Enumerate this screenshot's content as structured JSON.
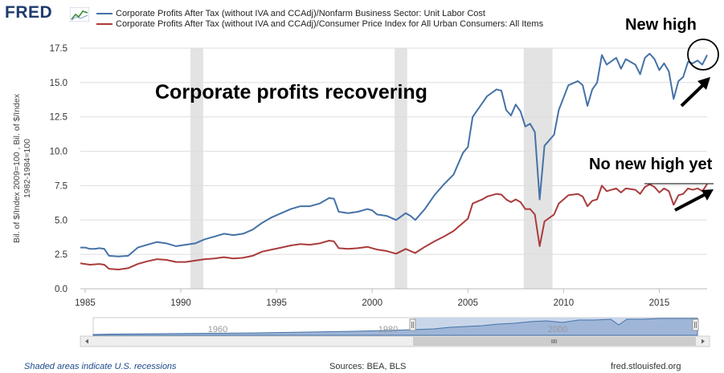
{
  "brand": {
    "logo_text": "FRED"
  },
  "colors": {
    "series1": "#4572a7",
    "series2": "#aa3b3b",
    "recession": "#e3e3e3",
    "grid": "#dddddd",
    "navigator_fill": "#9fb6d8",
    "navigator_line": "#4572a7"
  },
  "chart_data": {
    "type": "line",
    "title": "",
    "xlabel": "",
    "ylabel": "Bil. of $/Index 2009=100 , Bil. of $/Index 1982-1984=100",
    "xlim": [
      1984.75,
      2017.5
    ],
    "ylim": [
      0,
      17.5
    ],
    "yticks": [
      "0.0",
      "2.5",
      "5.0",
      "7.5",
      "10.0",
      "12.5",
      "15.0",
      "17.5"
    ],
    "xticks": [
      "1985",
      "1990",
      "1995",
      "2000",
      "2005",
      "2010",
      "2015"
    ],
    "grid": true,
    "recessions": [
      [
        1990.5,
        1991.17
      ],
      [
        2001.17,
        2001.83
      ],
      [
        2007.92,
        2009.42
      ]
    ],
    "series": [
      {
        "name": "Corporate Profits After Tax (without IVA and CCAdj)/Nonfarm Business Sector: Unit Labor Cost",
        "points": [
          [
            1984.75,
            3.0
          ],
          [
            1985.0,
            3.0
          ],
          [
            1985.25,
            2.9
          ],
          [
            1985.5,
            2.9
          ],
          [
            1985.75,
            2.95
          ],
          [
            1986.0,
            2.9
          ],
          [
            1986.25,
            2.4
          ],
          [
            1986.75,
            2.35
          ],
          [
            1987.25,
            2.4
          ],
          [
            1987.75,
            3.0
          ],
          [
            1988.25,
            3.2
          ],
          [
            1988.75,
            3.4
          ],
          [
            1989.25,
            3.3
          ],
          [
            1989.75,
            3.1
          ],
          [
            1990.25,
            3.2
          ],
          [
            1990.75,
            3.3
          ],
          [
            1991.25,
            3.6
          ],
          [
            1991.75,
            3.8
          ],
          [
            1992.25,
            4.0
          ],
          [
            1992.75,
            3.9
          ],
          [
            1993.25,
            4.0
          ],
          [
            1993.75,
            4.3
          ],
          [
            1994.25,
            4.8
          ],
          [
            1994.75,
            5.2
          ],
          [
            1995.25,
            5.5
          ],
          [
            1995.75,
            5.8
          ],
          [
            1996.25,
            6.0
          ],
          [
            1996.75,
            6.0
          ],
          [
            1997.25,
            6.2
          ],
          [
            1997.75,
            6.6
          ],
          [
            1998.0,
            6.55
          ],
          [
            1998.25,
            5.6
          ],
          [
            1998.75,
            5.5
          ],
          [
            1999.25,
            5.6
          ],
          [
            1999.75,
            5.8
          ],
          [
            2000.0,
            5.7
          ],
          [
            2000.25,
            5.4
          ],
          [
            2000.75,
            5.3
          ],
          [
            2001.25,
            5.0
          ],
          [
            2001.75,
            5.5
          ],
          [
            2002.0,
            5.3
          ],
          [
            2002.25,
            5.0
          ],
          [
            2002.75,
            5.8
          ],
          [
            2003.25,
            6.8
          ],
          [
            2003.75,
            7.6
          ],
          [
            2004.25,
            8.3
          ],
          [
            2004.75,
            9.9
          ],
          [
            2005.0,
            10.3
          ],
          [
            2005.25,
            12.5
          ],
          [
            2005.75,
            13.5
          ],
          [
            2006.0,
            14.0
          ],
          [
            2006.5,
            14.5
          ],
          [
            2006.75,
            14.4
          ],
          [
            2007.0,
            13.0
          ],
          [
            2007.25,
            12.6
          ],
          [
            2007.5,
            13.4
          ],
          [
            2007.75,
            12.9
          ],
          [
            2008.0,
            11.8
          ],
          [
            2008.25,
            12.0
          ],
          [
            2008.5,
            11.4
          ],
          [
            2008.75,
            6.5
          ],
          [
            2009.0,
            10.4
          ],
          [
            2009.5,
            11.2
          ],
          [
            2009.75,
            13.0
          ],
          [
            2010.25,
            14.8
          ],
          [
            2010.75,
            15.1
          ],
          [
            2011.0,
            14.8
          ],
          [
            2011.25,
            13.3
          ],
          [
            2011.5,
            14.5
          ],
          [
            2011.75,
            15.0
          ],
          [
            2012.0,
            17.0
          ],
          [
            2012.25,
            16.3
          ],
          [
            2012.75,
            16.8
          ],
          [
            2013.0,
            16.0
          ],
          [
            2013.25,
            16.7
          ],
          [
            2013.75,
            16.3
          ],
          [
            2014.0,
            15.6
          ],
          [
            2014.25,
            16.8
          ],
          [
            2014.5,
            17.1
          ],
          [
            2014.75,
            16.7
          ],
          [
            2015.0,
            15.9
          ],
          [
            2015.25,
            16.4
          ],
          [
            2015.5,
            15.8
          ],
          [
            2015.75,
            13.8
          ],
          [
            2016.0,
            15.1
          ],
          [
            2016.25,
            15.4
          ],
          [
            2016.5,
            16.5
          ],
          [
            2016.75,
            16.4
          ],
          [
            2017.0,
            16.6
          ],
          [
            2017.25,
            16.3
          ],
          [
            2017.5,
            17.0
          ]
        ]
      },
      {
        "name": "Corporate Profits After Tax (without IVA and CCAdj)/Consumer Price Index for All Urban Consumers: All Items",
        "points": [
          [
            1984.75,
            1.85
          ],
          [
            1985.25,
            1.75
          ],
          [
            1985.75,
            1.8
          ],
          [
            1986.0,
            1.75
          ],
          [
            1986.25,
            1.45
          ],
          [
            1986.75,
            1.4
          ],
          [
            1987.25,
            1.5
          ],
          [
            1987.75,
            1.8
          ],
          [
            1988.25,
            2.0
          ],
          [
            1988.75,
            2.15
          ],
          [
            1989.25,
            2.1
          ],
          [
            1989.75,
            1.95
          ],
          [
            1990.25,
            1.95
          ],
          [
            1990.75,
            2.05
          ],
          [
            1991.25,
            2.15
          ],
          [
            1991.75,
            2.2
          ],
          [
            1992.25,
            2.3
          ],
          [
            1992.75,
            2.2
          ],
          [
            1993.25,
            2.25
          ],
          [
            1993.75,
            2.4
          ],
          [
            1994.25,
            2.7
          ],
          [
            1994.75,
            2.85
          ],
          [
            1995.25,
            3.0
          ],
          [
            1995.75,
            3.15
          ],
          [
            1996.25,
            3.25
          ],
          [
            1996.75,
            3.2
          ],
          [
            1997.25,
            3.3
          ],
          [
            1997.75,
            3.5
          ],
          [
            1998.0,
            3.45
          ],
          [
            1998.25,
            2.95
          ],
          [
            1998.75,
            2.9
          ],
          [
            1999.25,
            2.95
          ],
          [
            1999.75,
            3.05
          ],
          [
            2000.0,
            2.95
          ],
          [
            2000.25,
            2.85
          ],
          [
            2000.75,
            2.75
          ],
          [
            2001.25,
            2.55
          ],
          [
            2001.75,
            2.9
          ],
          [
            2002.0,
            2.75
          ],
          [
            2002.25,
            2.6
          ],
          [
            2002.75,
            3.05
          ],
          [
            2003.25,
            3.45
          ],
          [
            2003.75,
            3.8
          ],
          [
            2004.25,
            4.2
          ],
          [
            2004.75,
            4.8
          ],
          [
            2005.0,
            5.1
          ],
          [
            2005.25,
            6.2
          ],
          [
            2005.75,
            6.5
          ],
          [
            2006.0,
            6.7
          ],
          [
            2006.5,
            6.9
          ],
          [
            2006.75,
            6.85
          ],
          [
            2007.0,
            6.5
          ],
          [
            2007.25,
            6.3
          ],
          [
            2007.5,
            6.5
          ],
          [
            2007.75,
            6.3
          ],
          [
            2008.0,
            5.8
          ],
          [
            2008.25,
            5.8
          ],
          [
            2008.5,
            5.4
          ],
          [
            2008.75,
            3.1
          ],
          [
            2009.0,
            4.9
          ],
          [
            2009.5,
            5.4
          ],
          [
            2009.75,
            6.2
          ],
          [
            2010.25,
            6.8
          ],
          [
            2010.75,
            6.9
          ],
          [
            2011.0,
            6.7
          ],
          [
            2011.25,
            6.0
          ],
          [
            2011.5,
            6.4
          ],
          [
            2011.75,
            6.5
          ],
          [
            2012.0,
            7.5
          ],
          [
            2012.25,
            7.1
          ],
          [
            2012.75,
            7.3
          ],
          [
            2013.0,
            7.0
          ],
          [
            2013.25,
            7.3
          ],
          [
            2013.75,
            7.2
          ],
          [
            2014.0,
            6.9
          ],
          [
            2014.25,
            7.4
          ],
          [
            2014.5,
            7.6
          ],
          [
            2014.75,
            7.4
          ],
          [
            2015.0,
            7.0
          ],
          [
            2015.25,
            7.3
          ],
          [
            2015.5,
            7.1
          ],
          [
            2015.75,
            6.1
          ],
          [
            2016.0,
            6.8
          ],
          [
            2016.25,
            6.9
          ],
          [
            2016.5,
            7.3
          ],
          [
            2016.75,
            7.2
          ],
          [
            2017.0,
            7.3
          ],
          [
            2017.25,
            7.1
          ],
          [
            2017.5,
            7.6
          ]
        ]
      }
    ],
    "annotations": [
      "Corporate profits recovering",
      "New high",
      "No new high yet"
    ],
    "navigator": {
      "labels": [
        "1960",
        "1980",
        "2000"
      ],
      "handle_icon": "grip-icon"
    }
  },
  "footer": {
    "note": "Shaded areas indicate U.S. recessions",
    "sources": "Sources: BEA, BLS",
    "url": "fred.stlouisfed.org"
  }
}
